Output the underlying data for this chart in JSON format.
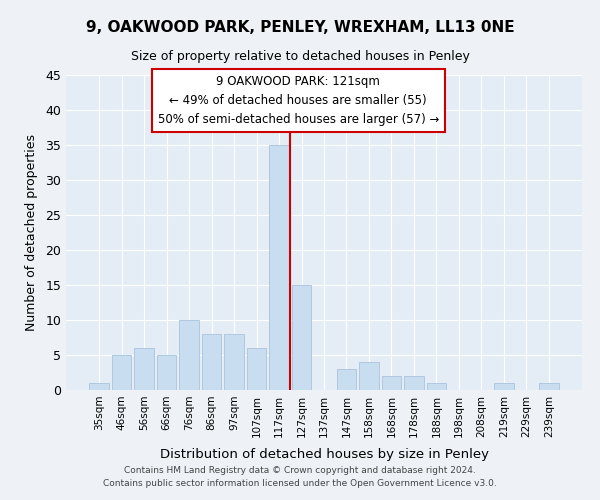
{
  "title": "9, OAKWOOD PARK, PENLEY, WREXHAM, LL13 0NE",
  "subtitle": "Size of property relative to detached houses in Penley",
  "xlabel": "Distribution of detached houses by size in Penley",
  "ylabel": "Number of detached properties",
  "bar_labels": [
    "35sqm",
    "46sqm",
    "56sqm",
    "66sqm",
    "76sqm",
    "86sqm",
    "97sqm",
    "107sqm",
    "117sqm",
    "127sqm",
    "137sqm",
    "147sqm",
    "158sqm",
    "168sqm",
    "178sqm",
    "188sqm",
    "198sqm",
    "208sqm",
    "219sqm",
    "229sqm",
    "239sqm"
  ],
  "bar_values": [
    1,
    5,
    6,
    5,
    10,
    8,
    8,
    6,
    35,
    15,
    0,
    3,
    4,
    2,
    2,
    1,
    0,
    0,
    1,
    0,
    1
  ],
  "bar_color": "#c9ddf0",
  "bar_edge_color": "#b0c8e0",
  "vline_color": "#cc0000",
  "annotation_title": "9 OAKWOOD PARK: 121sqm",
  "annotation_line1": "← 49% of detached houses are smaller (55)",
  "annotation_line2": "50% of semi-detached houses are larger (57) →",
  "annotation_box_color": "#ffffff",
  "annotation_box_edge": "#cc0000",
  "ylim": [
    0,
    45
  ],
  "yticks": [
    0,
    5,
    10,
    15,
    20,
    25,
    30,
    35,
    40,
    45
  ],
  "bg_color": "#eef2f7",
  "plot_bg_color": "#e4ecf5",
  "grid_color": "#ffffff",
  "footer_line1": "Contains HM Land Registry data © Crown copyright and database right 2024.",
  "footer_line2": "Contains public sector information licensed under the Open Government Licence v3.0."
}
